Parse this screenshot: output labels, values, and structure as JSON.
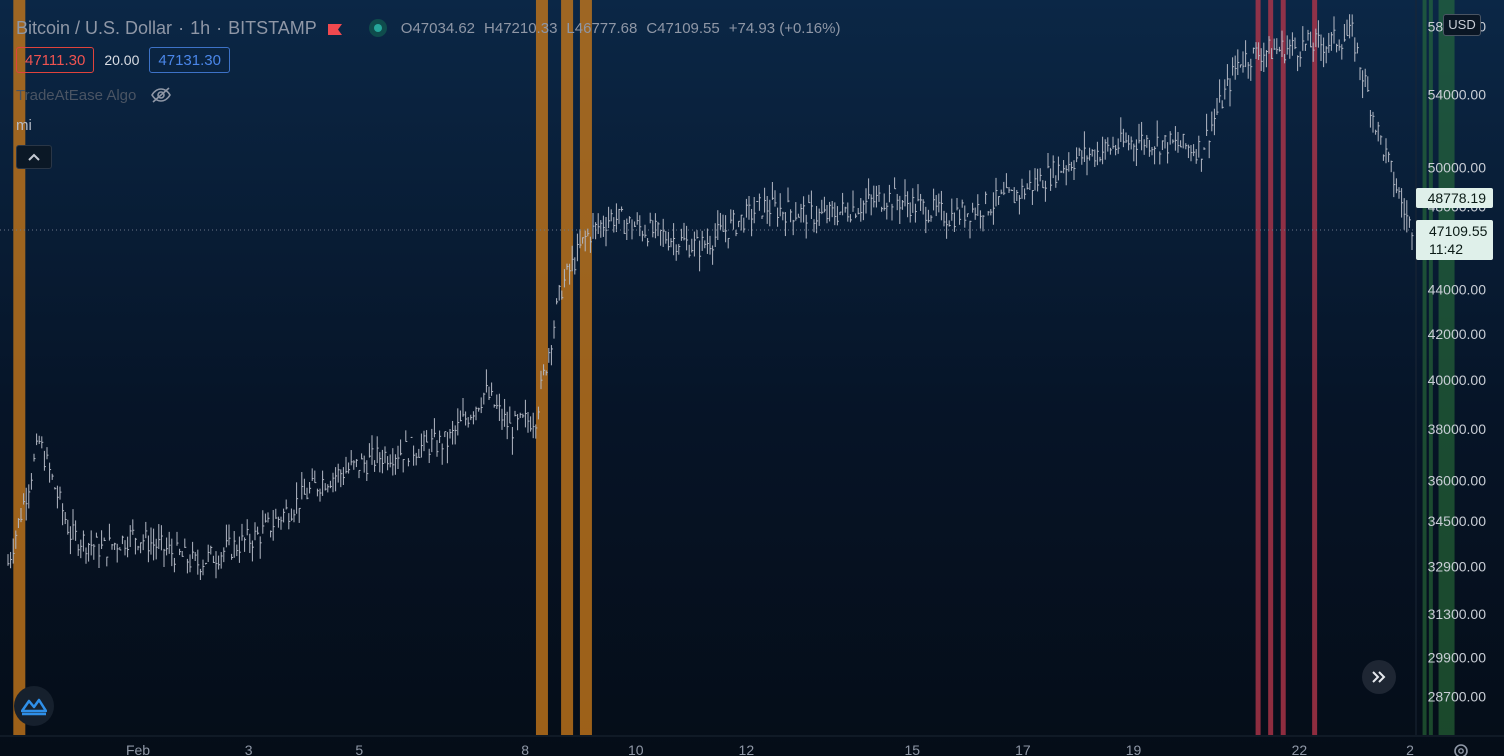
{
  "header": {
    "symbol": "Bitcoin / U.S. Dollar",
    "interval": "1h",
    "exchange": "BITSTAMP",
    "separator": "·",
    "open": "O47034.62",
    "high": "H47210.33",
    "low": "L46777.68",
    "close": "C47109.55",
    "change": "+74.93 (+0.16%)"
  },
  "trade": {
    "sell_price": "47111.30",
    "spread": "20.00",
    "buy_price": "47131.30"
  },
  "indicators": {
    "algo_label": "TradeAtEase Algo",
    "mi_label": "mi"
  },
  "price_axis": {
    "currency": "USD",
    "ticks": [
      "58000.00",
      "54000.00",
      "50000.00",
      "48000.00",
      "44000.00",
      "42000.00",
      "40000.00",
      "38000.00",
      "36000.00",
      "34500.00",
      "32900.00",
      "31300.00",
      "29900.00",
      "28700.00"
    ],
    "marker_price": "48778.19",
    "current_price": "47109.55",
    "countdown": "11:42"
  },
  "time_axis": {
    "ticks": [
      "Feb",
      "3",
      "5",
      "8",
      "10",
      "12",
      "15",
      "17",
      "19",
      "22",
      "2"
    ]
  },
  "colors": {
    "background_top": "#0b2746",
    "background_bottom": "#050d18",
    "bar": "#b3b8c4",
    "orange_band": "#c8781a",
    "red_band": "#b5364a",
    "green_band": "#2e7a3c",
    "sell": "#ef5350",
    "buy": "#4a86e8"
  },
  "chart_data": {
    "type": "line",
    "title": "Bitcoin / U.S. Dollar · 1h · BITSTAMP",
    "xlabel": "",
    "ylabel": "",
    "x_ticks": [
      "Feb",
      "3",
      "5",
      "8",
      "10",
      "12",
      "15",
      "17",
      "19",
      "22",
      "2"
    ],
    "y_ticks": [
      58000,
      54000,
      50000,
      48000,
      44000,
      42000,
      40000,
      38000,
      36000,
      34500,
      32900,
      31300,
      29900,
      28700
    ],
    "scale": "log",
    "ylim": [
      28000,
      59000
    ],
    "grid": false,
    "series": [
      {
        "x": [
          0,
          0.5,
          1,
          1.5,
          2,
          3,
          4,
          5,
          6,
          7,
          7.6,
          8,
          8.4,
          8.8,
          9.2,
          9.6,
          10,
          11,
          12,
          13,
          14,
          15,
          16,
          17,
          18,
          19,
          19.6,
          20,
          21,
          21.4,
          21.8,
          22.1,
          22.3
        ],
        "y": [
          33000,
          37500,
          34000,
          33500,
          34000,
          33000,
          34000,
          36000,
          37000,
          37500,
          39500,
          38000,
          38500,
          44000,
          46500,
          47500,
          47000,
          46000,
          48000,
          47500,
          48500,
          47500,
          48500,
          50500,
          51500,
          51000,
          56000,
          56500,
          57000,
          57500,
          52000,
          49000,
          47100
        ]
      }
    ],
    "bands": [
      {
        "x": 0.18,
        "color": "orange"
      },
      {
        "x": 8.5,
        "color": "orange"
      },
      {
        "x": 8.9,
        "color": "orange"
      },
      {
        "x": 9.2,
        "color": "orange"
      },
      {
        "x": 19.9,
        "color": "red"
      },
      {
        "x": 20.1,
        "color": "red"
      },
      {
        "x": 20.3,
        "color": "red"
      },
      {
        "x": 20.8,
        "color": "red"
      },
      {
        "x": 22.55,
        "color": "green"
      },
      {
        "x": 22.65,
        "color": "green"
      },
      {
        "x": 22.9,
        "color": "green"
      }
    ]
  }
}
